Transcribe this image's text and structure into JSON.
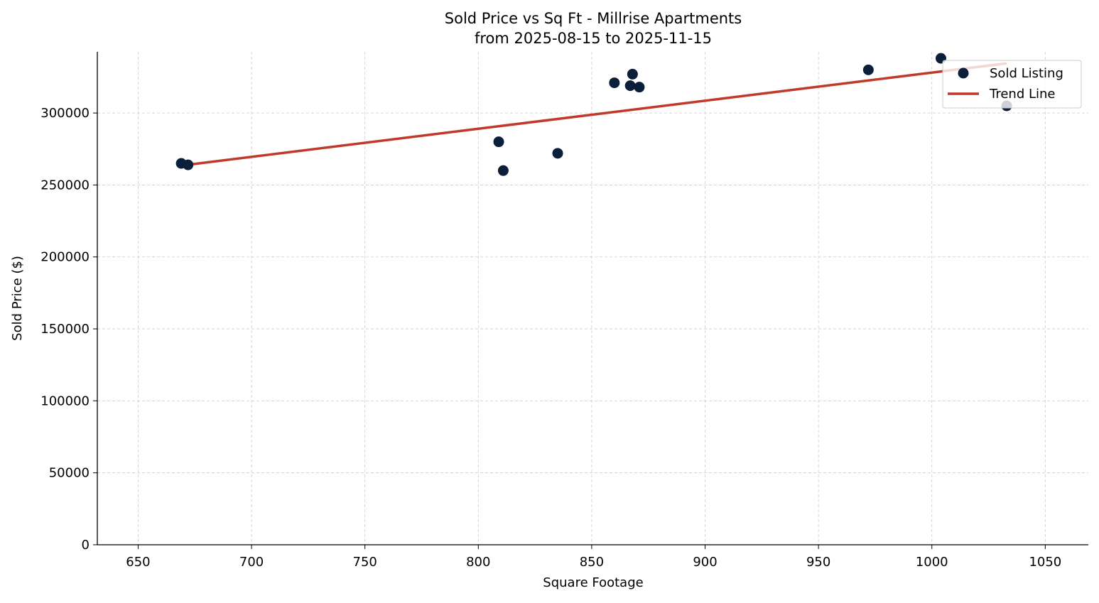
{
  "chart_data": {
    "type": "scatter",
    "title": "Sold Price vs Sq Ft - Millrise Apartments",
    "subtitle": "from 2025-08-15 to 2025-11-15",
    "xlabel": "Square Footage",
    "ylabel": "Sold Price ($)",
    "xlim": [
      632,
      1069
    ],
    "ylim": [
      0,
      342500
    ],
    "xticks": [
      650,
      700,
      750,
      800,
      850,
      900,
      950,
      1000,
      1050
    ],
    "yticks": [
      0,
      50000,
      100000,
      150000,
      200000,
      250000,
      300000
    ],
    "grid": true,
    "legend_position": "top-right",
    "series": [
      {
        "name": "Sold Listing",
        "type": "scatter",
        "color": "#0b1f3a",
        "points": [
          {
            "x": 669,
            "y": 265000
          },
          {
            "x": 672,
            "y": 264000
          },
          {
            "x": 809,
            "y": 280000
          },
          {
            "x": 811,
            "y": 260000
          },
          {
            "x": 835,
            "y": 272000
          },
          {
            "x": 860,
            "y": 321000
          },
          {
            "x": 867,
            "y": 319000
          },
          {
            "x": 868,
            "y": 327000
          },
          {
            "x": 871,
            "y": 318000
          },
          {
            "x": 972,
            "y": 330000
          },
          {
            "x": 1004,
            "y": 338000
          },
          {
            "x": 1033,
            "y": 305000
          }
        ]
      },
      {
        "name": "Trend Line",
        "type": "line",
        "color": "#c0392b",
        "points": [
          {
            "x": 669,
            "y": 263500
          },
          {
            "x": 1033,
            "y": 334500
          }
        ]
      }
    ]
  }
}
